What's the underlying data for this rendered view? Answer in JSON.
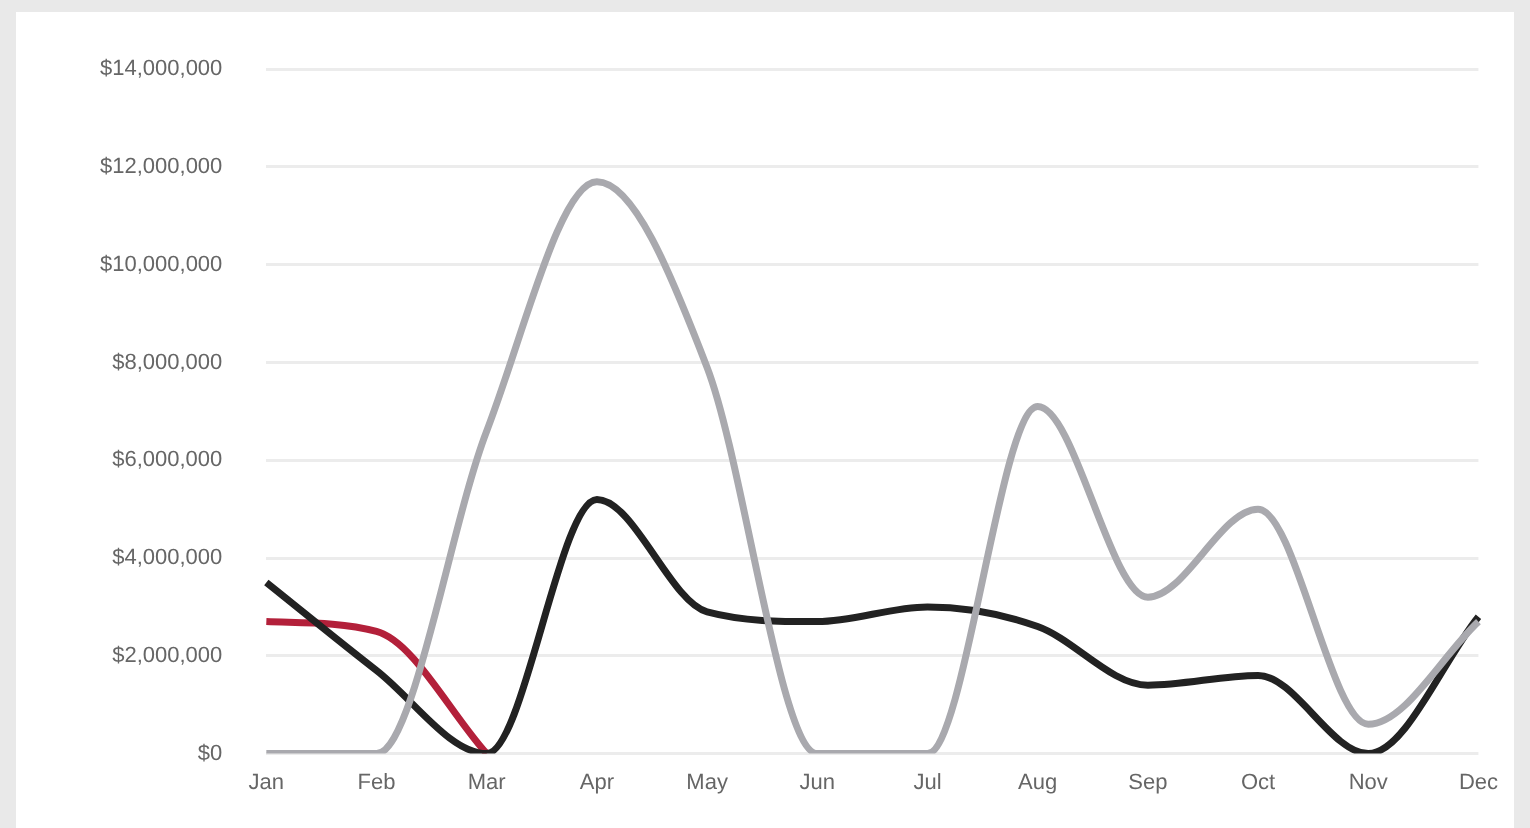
{
  "chart_data": {
    "type": "line",
    "categories": [
      "Jan",
      "Feb",
      "Mar",
      "Apr",
      "May",
      "Jun",
      "Jul",
      "Aug",
      "Sep",
      "Oct",
      "Nov",
      "Dec"
    ],
    "series": [
      {
        "color": "#a9a9ae",
        "values": [
          0,
          0,
          6600000,
          11700000,
          7900000,
          0,
          0,
          7100000,
          3200000,
          5000000,
          600000,
          2700000
        ]
      },
      {
        "color": "#222222",
        "values": [
          3500000,
          1700000,
          0,
          5200000,
          2900000,
          2700000,
          3000000,
          2600000,
          1400000,
          1600000,
          0,
          2800000
        ]
      },
      {
        "color": "#b3203a",
        "values": [
          2700000,
          2500000,
          0,
          null,
          null,
          null,
          null,
          null,
          null,
          null,
          null,
          null
        ]
      }
    ],
    "ylim": [
      0,
      14000000
    ],
    "yticks": [
      {
        "value": 0,
        "label": "$0"
      },
      {
        "value": 2000000,
        "label": "$2,000,000"
      },
      {
        "value": 4000000,
        "label": "$4,000,000"
      },
      {
        "value": 6000000,
        "label": "$6,000,000"
      },
      {
        "value": 8000000,
        "label": "$8,000,000"
      },
      {
        "value": 10000000,
        "label": "$10,000,000"
      },
      {
        "value": 12000000,
        "label": "$12,000,000"
      },
      {
        "value": 14000000,
        "label": "$14,000,000"
      }
    ],
    "grid": "y",
    "legend": false,
    "marker": "none",
    "line_style": "solid"
  }
}
